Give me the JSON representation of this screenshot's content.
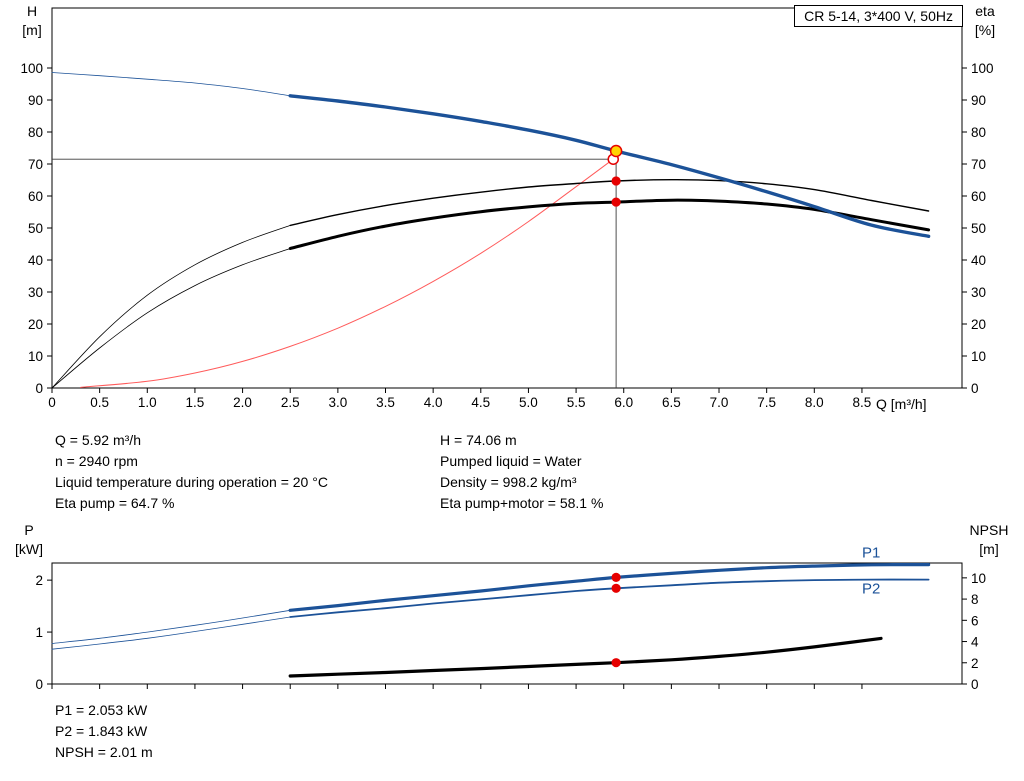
{
  "info_panel": {
    "left": [
      "Q = 5.92 m³/h",
      "n = 2940 rpm",
      "Liquid temperature during operation = 20 °C",
      "Eta pump = 64.7 %"
    ],
    "right": [
      "H = 74.06 m",
      "Pumped liquid = Water",
      "Density = 998.2 kg/m³",
      "Eta pump+motor = 58.1 %"
    ]
  },
  "results": [
    "P1 = 2.053 kW",
    "P2 = 1.843 kW",
    "NPSH = 2.01 m"
  ],
  "colors": {
    "curve_blue": "#1c5298",
    "curve_black": "#000000",
    "system_red": "#ff5b5b",
    "marker_red": "#e60000",
    "duty_yellow": "#ffd400"
  },
  "chart_data": [
    {
      "id": "hq",
      "type": "line",
      "title": "CR 5-14, 3*400 V, 50Hz",
      "xlabel": "Q [m³/h]",
      "ylabel_left": {
        "name": "H",
        "unit": "[m]"
      },
      "ylabel_right": {
        "name": "eta",
        "unit": "[%]"
      },
      "xlim": [
        0,
        9.55
      ],
      "ylim_left": [
        0,
        118.75
      ],
      "ylim_right": [
        0,
        118.75
      ],
      "x_ticks": [
        0,
        0.5,
        1,
        1.5,
        2,
        2.5,
        3,
        3.5,
        4,
        4.5,
        5,
        5.5,
        6,
        6.5,
        7,
        7.5,
        8,
        8.5
      ],
      "x_tick_labels": [
        "0",
        "0.5",
        "1.0",
        "1.5",
        "2.0",
        "2.5",
        "3.0",
        "3.5",
        "4.0",
        "4.5",
        "5.0",
        "5.5",
        "6.0",
        "6.5",
        "7.0",
        "7.5",
        "8.0",
        "8.5"
      ],
      "y_ticks_left": [
        0,
        10,
        20,
        30,
        40,
        50,
        60,
        70,
        80,
        90,
        100
      ],
      "y_tick_labels_left": [
        "0",
        "10",
        "20",
        "30",
        "40",
        "50",
        "60",
        "70",
        "80",
        "90",
        "100"
      ],
      "y_ticks_right": [
        0,
        10,
        20,
        30,
        40,
        50,
        60,
        70,
        80,
        90,
        100
      ],
      "y_tick_labels_right": [
        "0",
        "10",
        "20",
        "30",
        "40",
        "50",
        "60",
        "70",
        "80",
        "90",
        "100"
      ],
      "crosshair": {
        "x": 5.92,
        "v_top": 74.06,
        "h_y": 71.5
      },
      "series": [
        {
          "name": "system-resistance",
          "color": "#ff5b5b",
          "width": 1,
          "x": [
            0.3,
            1,
            1.5,
            2,
            2.5,
            3,
            3.5,
            4,
            4.5,
            5,
            5.5,
            5.89
          ],
          "y": [
            0.2,
            2.1,
            4.7,
            8.3,
            13,
            18.7,
            25.5,
            33.3,
            42.1,
            52,
            62.9,
            71.5
          ]
        },
        {
          "name": "eta-pump-extension",
          "color": "#000000",
          "width": 0.8,
          "x": [
            0,
            0.5,
            1,
            1.5,
            2,
            2.5
          ],
          "y": [
            0,
            16,
            29,
            38.5,
            45.5,
            50.8
          ]
        },
        {
          "name": "eta-pump",
          "color": "#000000",
          "width": 1.4,
          "x": [
            2.5,
            3,
            3.5,
            4,
            4.5,
            5,
            5.5,
            5.92,
            6.5,
            7,
            7.5,
            8,
            8.6,
            9.2
          ],
          "y": [
            50.8,
            54.2,
            57,
            59.3,
            61.2,
            62.8,
            63.9,
            64.7,
            65.1,
            64.8,
            63.8,
            62,
            58.6,
            55.3
          ]
        },
        {
          "name": "eta-pump-motor-extension",
          "color": "#000000",
          "width": 0.8,
          "x": [
            0,
            0.5,
            1,
            1.5,
            2,
            2.5
          ],
          "y": [
            0,
            12.5,
            23.5,
            32,
            38.5,
            43.6
          ]
        },
        {
          "name": "eta-pump-motor",
          "color": "#000000",
          "width": 3,
          "x": [
            2.5,
            3,
            3.5,
            4,
            4.5,
            5,
            5.5,
            5.92,
            6.5,
            7,
            7.5,
            8,
            8.6,
            9.2
          ],
          "y": [
            43.6,
            47.4,
            50.6,
            53.1,
            55.1,
            56.6,
            57.7,
            58.1,
            58.7,
            58.4,
            57.5,
            55.8,
            52.6,
            49.4
          ]
        },
        {
          "name": "head-extension",
          "color": "#1c5298",
          "width": 0.8,
          "x": [
            0,
            0.5,
            1,
            1.5,
            2,
            2.5
          ],
          "y": [
            98.6,
            97.6,
            96.5,
            95.3,
            93.6,
            91.3
          ]
        },
        {
          "name": "head",
          "color": "#1c5298",
          "width": 3.4,
          "x": [
            2.5,
            3,
            3.5,
            4,
            4.5,
            5,
            5.5,
            5.92,
            6.5,
            7,
            7.5,
            8,
            8.6,
            9.2
          ],
          "y": [
            91.3,
            89.7,
            87.8,
            85.7,
            83.3,
            80.6,
            77.4,
            74.06,
            69.8,
            65.7,
            61.3,
            56.7,
            50.9,
            47.4
          ]
        }
      ],
      "markers": [
        {
          "name": "requested-duty-marker",
          "x": 5.89,
          "y": 71.5,
          "r": 5,
          "fill": "#ffffff",
          "stroke": "#e60000"
        },
        {
          "name": "eta-pump-operating-point",
          "x": 5.92,
          "y": 64.7,
          "r": 4.6,
          "fill": "#e60000"
        },
        {
          "name": "eta-pump-motor-operating-point",
          "x": 5.92,
          "y": 58.1,
          "r": 4.6,
          "fill": "#e60000"
        },
        {
          "name": "duty-point",
          "x": 5.92,
          "y": 74.06,
          "r": 5.5,
          "fill": "#ffd400",
          "stroke": "#e60000",
          "draggable": true
        }
      ]
    },
    {
      "id": "power",
      "type": "line",
      "title": "",
      "xlabel": "",
      "ylabel_left": {
        "name": "P",
        "unit": "[kW]"
      },
      "ylabel_right": {
        "name": "NPSH",
        "unit": "[m]"
      },
      "xlim": [
        0,
        9.55
      ],
      "ylim_left": [
        0,
        2.33
      ],
      "ylim_right": [
        0,
        11.4
      ],
      "x_ticks": [
        0,
        0.5,
        1,
        1.5,
        2,
        2.5,
        3,
        3.5,
        4,
        4.5,
        5,
        5.5,
        6,
        6.5,
        7,
        7.5,
        8,
        8.5
      ],
      "x_tick_labels": [],
      "y_ticks_left": [
        0,
        1,
        2
      ],
      "y_tick_labels_left": [
        "0",
        "1",
        "2"
      ],
      "y_ticks_right": [
        0,
        2,
        4,
        6,
        8,
        10
      ],
      "y_tick_labels_right": [
        "0",
        "2",
        "4",
        "6",
        "8",
        "10"
      ],
      "series": [
        {
          "name": "npsh",
          "color": "#000000",
          "width": 3.2,
          "axis": "right",
          "x": [
            2.5,
            3,
            3.5,
            4,
            4.5,
            5,
            5.5,
            5.92,
            6.5,
            7,
            7.5,
            8,
            8.7
          ],
          "y": [
            0.75,
            0.92,
            1.08,
            1.27,
            1.45,
            1.65,
            1.85,
            2.01,
            2.28,
            2.6,
            3.0,
            3.5,
            4.3
          ]
        },
        {
          "name": "p2-extension",
          "color": "#1c5298",
          "width": 0.8,
          "x": [
            0,
            0.5,
            1,
            1.5,
            2,
            2.5
          ],
          "y": [
            0.67,
            0.77,
            0.88,
            1.01,
            1.15,
            1.29
          ]
        },
        {
          "name": "p2",
          "color": "#1c5298",
          "width": 1.8,
          "x": [
            2.5,
            3,
            3.5,
            4,
            4.5,
            5,
            5.5,
            5.92,
            6.5,
            7,
            7.5,
            8,
            8.6,
            9.2
          ],
          "y": [
            1.29,
            1.38,
            1.46,
            1.55,
            1.63,
            1.71,
            1.79,
            1.843,
            1.9,
            1.95,
            1.98,
            2.0,
            2.01,
            2.01
          ],
          "label": {
            "text": "P2",
            "x": 8.5,
            "y": 1.74
          }
        },
        {
          "name": "p1-extension",
          "color": "#1c5298",
          "width": 0.8,
          "x": [
            0,
            0.5,
            1,
            1.5,
            2,
            2.5
          ],
          "y": [
            0.78,
            0.88,
            1.0,
            1.13,
            1.27,
            1.42
          ]
        },
        {
          "name": "p1",
          "color": "#1c5298",
          "width": 3.2,
          "x": [
            2.5,
            3,
            3.5,
            4,
            4.5,
            5,
            5.5,
            5.92,
            6.5,
            7,
            7.5,
            8,
            8.6,
            9.2
          ],
          "y": [
            1.42,
            1.51,
            1.61,
            1.7,
            1.79,
            1.89,
            1.98,
            2.053,
            2.13,
            2.19,
            2.24,
            2.27,
            2.295,
            2.3
          ],
          "label": {
            "text": "P1",
            "x": 8.5,
            "y": 2.44
          }
        }
      ],
      "markers": [
        {
          "name": "p1-operating-point",
          "x": 5.92,
          "y": 2.053,
          "r": 4.6,
          "fill": "#e60000"
        },
        {
          "name": "p2-operating-point",
          "x": 5.92,
          "y": 1.843,
          "r": 4.6,
          "fill": "#e60000"
        },
        {
          "name": "npsh-operating-point",
          "x": 5.92,
          "y": 2.01,
          "axis": "right",
          "r": 4.6,
          "fill": "#e60000"
        }
      ]
    }
  ]
}
